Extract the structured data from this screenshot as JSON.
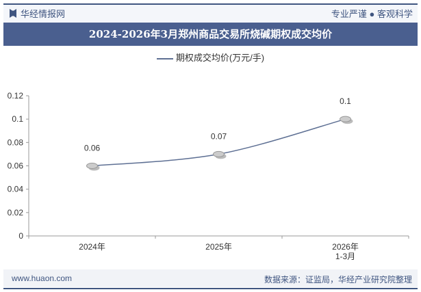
{
  "header": {
    "brand": "华经情报网",
    "slogan": "专业严谨 ● 客观科学"
  },
  "footer": {
    "url": "www.huaon.com",
    "source": "数据来源：证监局，华经产业研究院整理"
  },
  "watermark": "华经产业研究院 www.huaon.com",
  "chart_data": {
    "type": "line",
    "title": "2024-2026年3月郑州商品交易所烧碱期权成交均价",
    "categories": [
      "2024年",
      "2025年",
      "2026年\n1-3月"
    ],
    "series": [
      {
        "name": "期权成交均价(万元/手)",
        "values": [
          0.06,
          0.07,
          0.1
        ],
        "color": "#5d6f93"
      }
    ],
    "data_labels": [
      "0.06",
      "0.07",
      "0.1"
    ],
    "ylim": [
      0,
      0.12
    ],
    "yticks": [
      "0",
      "0.02",
      "0.04",
      "0.06",
      "0.08",
      "0.1",
      "0.12"
    ],
    "grid": false,
    "legend": "top"
  }
}
